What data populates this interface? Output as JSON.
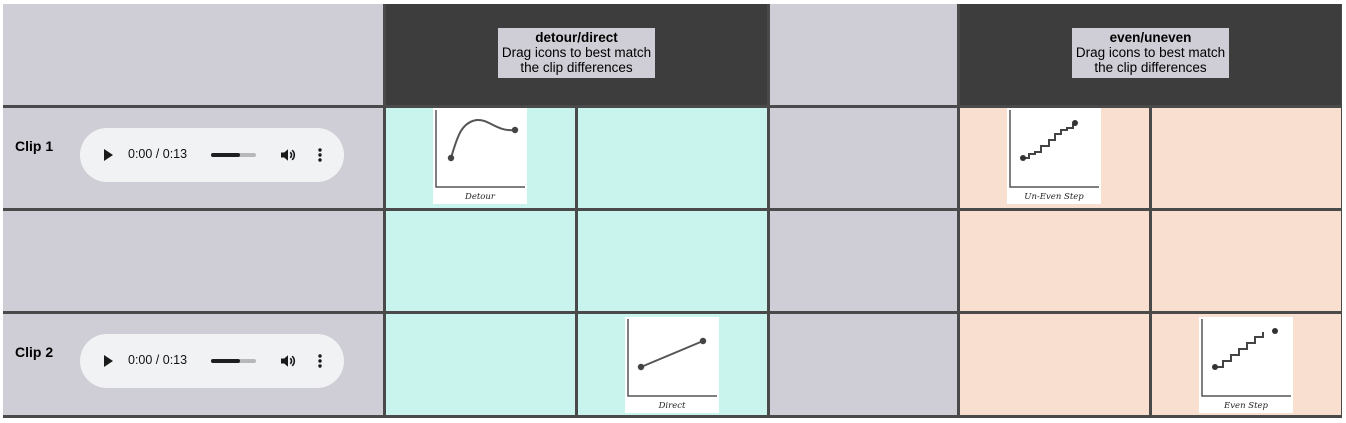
{
  "headers": [
    {
      "title": "detour/direct",
      "subtitle_line1": "Drag icons to best match",
      "subtitle_line2": "the clip differences"
    },
    {
      "title": "even/uneven",
      "subtitle_line1": "Drag icons to best match",
      "subtitle_line2": "the clip differences"
    }
  ],
  "clips": [
    {
      "label": "Clip 1",
      "time": "0:00 / 0:13",
      "volume_level": 0.65
    },
    {
      "label": "Clip 2",
      "time": "0:00 / 0:13",
      "volume_level": 0.65
    }
  ],
  "icons": {
    "detour": {
      "caption": "Detour"
    },
    "direct": {
      "caption": "Direct"
    },
    "uneven": {
      "caption": "Un-Even Step"
    },
    "even": {
      "caption": "Even Step"
    }
  },
  "colors": {
    "detour_zone": "#c9f4ee",
    "even_zone": "#f8dfd0",
    "neutral": "#cfced6",
    "header": "#3d3d3d"
  }
}
